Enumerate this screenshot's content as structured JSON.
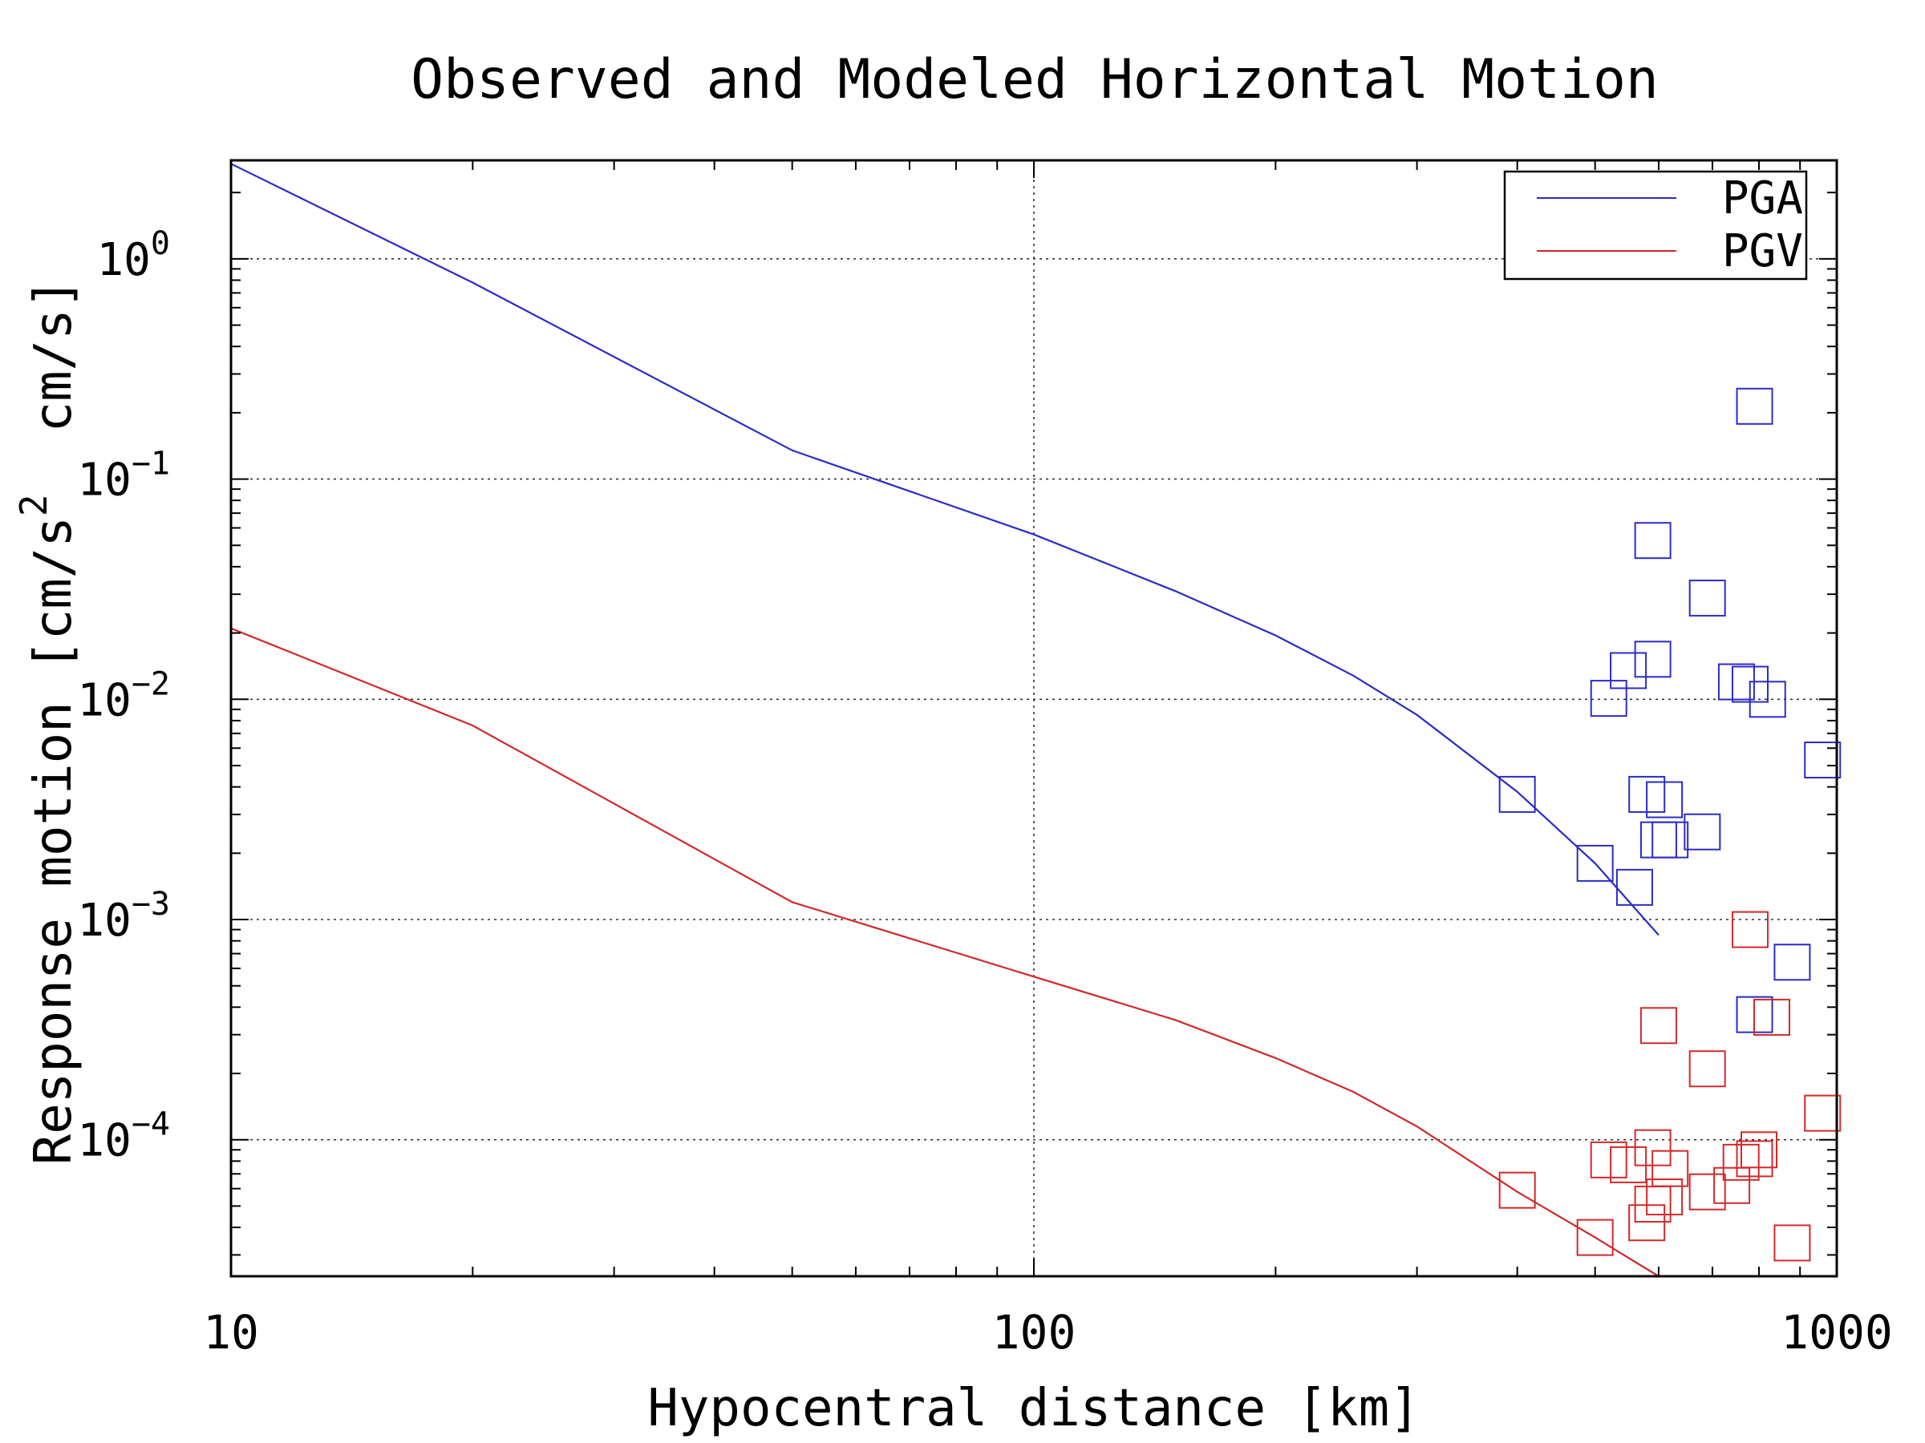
{
  "chart_data": {
    "type": "scatter",
    "title": "Observed and Modeled Horizontal Motion",
    "xlabel": "Hypocentral distance [km]",
    "ylabel_parts": [
      "Response motion [cm/s",
      "2",
      "  cm/s]"
    ],
    "x_scale": "log",
    "y_scale": "log",
    "xlim": [
      10,
      1000
    ],
    "ylim": [
      2.4e-05,
      2.8
    ],
    "x_ticks": [
      {
        "value": 10,
        "label": "10"
      },
      {
        "value": 100,
        "label": "100"
      },
      {
        "value": 1000,
        "label": "1000"
      }
    ],
    "y_ticks": [
      {
        "value": 1,
        "base": "10",
        "exp": "0"
      },
      {
        "value": 0.1,
        "base": "10",
        "exp": "−1"
      },
      {
        "value": 0.01,
        "base": "10",
        "exp": "−2"
      },
      {
        "value": 0.001,
        "base": "10",
        "exp": "−3"
      },
      {
        "value": 0.0001,
        "base": "10",
        "exp": "−4"
      }
    ],
    "grid": true,
    "legend_position": "top-right",
    "series": [
      {
        "name": "PGA",
        "color": "#2b2bc8",
        "model": {
          "x": [
            10,
            20,
            50,
            100,
            150,
            200,
            250,
            300,
            400,
            500,
            600
          ],
          "y": [
            2.7,
            0.78,
            0.135,
            0.056,
            0.031,
            0.0195,
            0.0128,
            0.0085,
            0.0038,
            0.0018,
            0.00085
          ]
        },
        "observed": {
          "x": [
            400,
            500,
            520,
            550,
            560,
            580,
            590,
            590,
            600,
            610,
            620,
            680,
            690,
            750,
            780,
            790,
            790,
            820,
            880,
            960
          ],
          "y": [
            0.0037,
            0.0018,
            0.0101,
            0.0135,
            0.0014,
            0.0037,
            0.0526,
            0.0152,
            0.0023,
            0.0035,
            0.0023,
            0.0025,
            0.0288,
            0.012,
            0.0117,
            0.214,
            0.00037,
            0.01,
            0.00064,
            0.0053
          ]
        }
      },
      {
        "name": "PGV",
        "color": "#d42828",
        "model": {
          "x": [
            10,
            20,
            50,
            100,
            150,
            200,
            250,
            300,
            400,
            500,
            600
          ],
          "y": [
            0.021,
            0.0076,
            0.0012,
            0.00055,
            0.00035,
            0.000235,
            0.000165,
            0.000115,
            5.8e-05,
            3.6e-05,
            2.4e-05
          ]
        },
        "observed": {
          "x": [
            400,
            500,
            520,
            550,
            580,
            590,
            590,
            600,
            610,
            620,
            690,
            690,
            740,
            760,
            780,
            790,
            800,
            830,
            880,
            960
          ],
          "y": [
            5.9e-05,
            3.6e-05,
            8.1e-05,
            7.7e-05,
            4.2e-05,
            5.1e-05,
            9.2e-05,
            0.00033,
            5.5e-05,
            7.4e-05,
            0.00021,
            5.8e-05,
            6.2e-05,
            7.9e-05,
            0.0009,
            8.2e-05,
            9e-05,
            0.00036,
            3.4e-05,
            0.000132
          ]
        }
      }
    ]
  }
}
